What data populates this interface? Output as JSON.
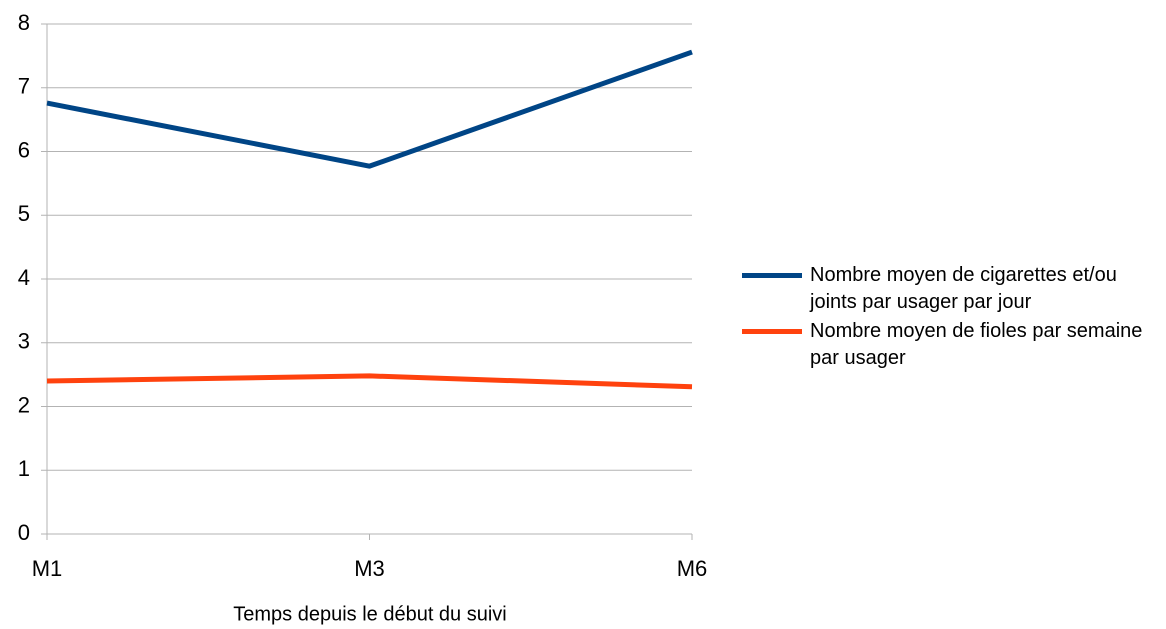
{
  "chart_data": {
    "type": "line",
    "x_label": "Temps depuis le début du suivi",
    "categories": [
      "M1",
      "M3",
      "M6"
    ],
    "series": [
      {
        "name": "Nombre moyen de cigarettes et/ou joints par usager par jour",
        "color": "#004586",
        "values": [
          6.76,
          5.77,
          7.56
        ]
      },
      {
        "name": "Nombre moyen de fioles par semaine par usager",
        "color": "#ff420e",
        "values": [
          2.4,
          2.48,
          2.31
        ]
      }
    ],
    "ylim": [
      0,
      8
    ],
    "yticks": [
      0,
      1,
      2,
      3,
      4,
      5,
      6,
      7,
      8
    ],
    "grid": true,
    "legend": "right"
  }
}
